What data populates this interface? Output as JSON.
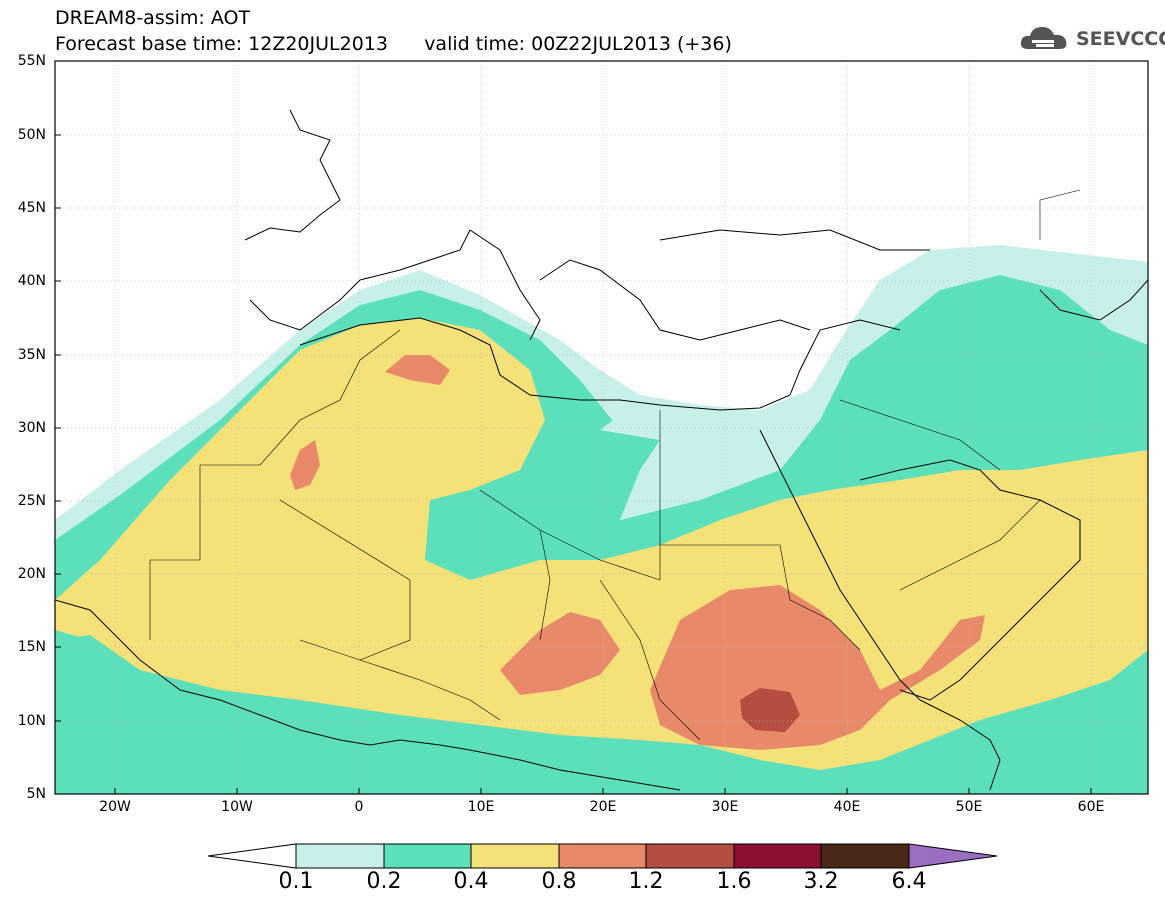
{
  "header": {
    "line1": "DREAM8-assim: AOT",
    "line2": "Forecast base time: 12Z20JUL2013      valid time: 00Z22JUL2013 (+36)"
  },
  "logo": {
    "text": "SEEVCCC",
    "icon": "cloud-icon"
  },
  "axes": {
    "y_ticks": [
      "55N",
      "50N",
      "45N",
      "40N",
      "35N",
      "30N",
      "25N",
      "20N",
      "15N",
      "10N",
      "5N"
    ],
    "x_ticks": [
      "20W",
      "10W",
      "0",
      "10E",
      "20E",
      "30E",
      "40E",
      "50E",
      "60E"
    ]
  },
  "colorbar": {
    "levels": [
      "0.1",
      "0.2",
      "0.4",
      "0.8",
      "1.2",
      "1.6",
      "3.2",
      "6.4"
    ],
    "colors": [
      "#c8f0ea",
      "#5ce0bc",
      "#f4e178",
      "#e8896a",
      "#b54e40",
      "#8c1030",
      "#4a2818",
      "#9a6ec0"
    ]
  }
}
